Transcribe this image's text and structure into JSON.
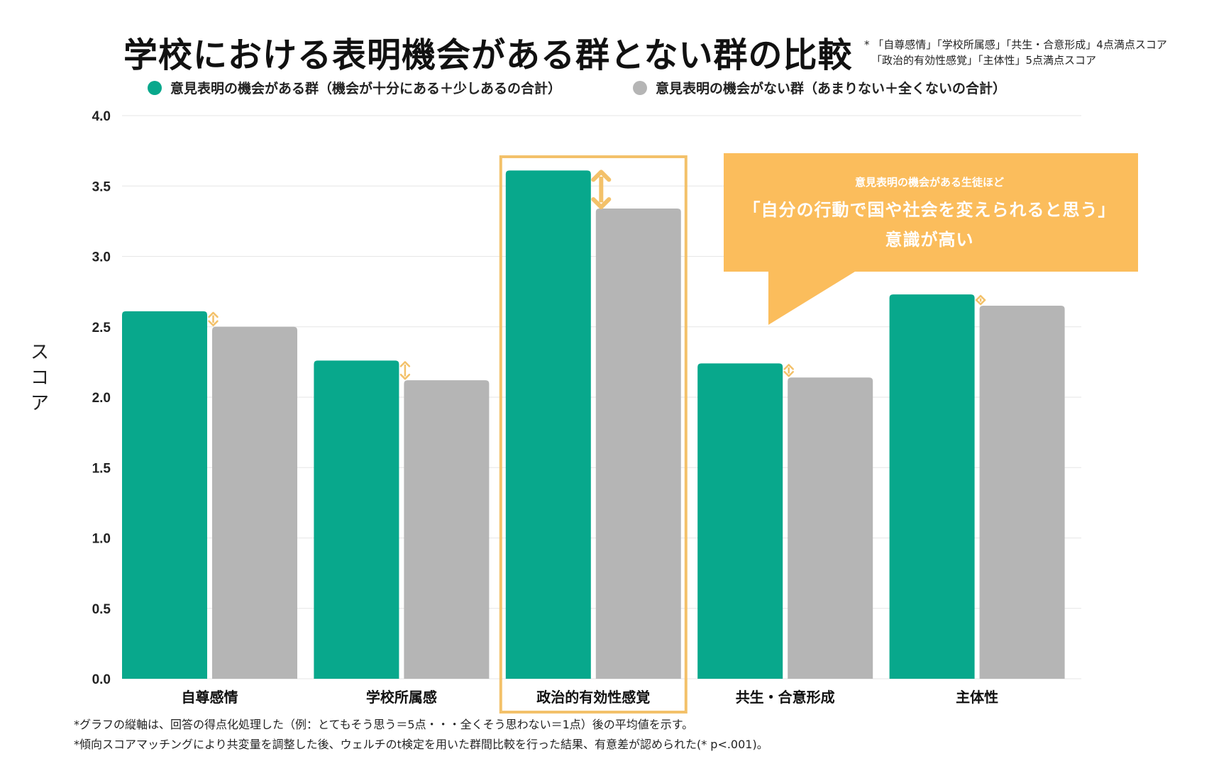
{
  "title": "学校における表明機会がある群とない群の比較",
  "notes": {
    "line1": "* 「自尊感情」「学校所属感」「共生・合意形成」4点満点スコア",
    "line2": "「政治的有効性感覚」「主体性」5点満点スコア"
  },
  "legend": {
    "group1": "意見表明の機会がある群（機会が十分にある＋少しあるの合計）",
    "group2": "意見表明の機会がない群（あまりない＋全くないの合計）"
  },
  "callout": {
    "sub": "意見表明の機会がある生徒ほど",
    "main": "「自分の行動で国や社会を変えられると思う」",
    "main2": "意識が高い"
  },
  "footnotes": {
    "line1": "*グラフの縦軸は、回答の得点化処理した（例：とてもそう思う＝5点・・・全くそう思わない＝1点）後の平均値を示す。",
    "line2": "*傾向スコアマッチングにより共変量を調整した後、ウェルチのt検定を用いた群間比較を行った結果、有意差が認められた(* p<.001)。"
  },
  "colors": {
    "group1": "#08a88c",
    "group2": "#b5b5b5",
    "highlight": "#f3c16a",
    "callout": "#fbbd5c",
    "grid": "#e6e6e6"
  },
  "chart_data": {
    "type": "bar",
    "title": "学校における表明機会がある群とない群の比較",
    "xlabel": "",
    "ylabel": "スコア",
    "ylim": [
      0,
      4.0
    ],
    "yticks": [
      "0.0",
      "0.5",
      "1.0",
      "1.5",
      "2.0",
      "2.5",
      "3.0",
      "3.5",
      "4.0"
    ],
    "categories": [
      "自尊感情",
      "学校所属感",
      "政治的有効性感覚",
      "共生・合意形成",
      "主体性"
    ],
    "series": [
      {
        "name": "意見表明の機会がある群（機会が十分にある＋少しあるの合計）",
        "values": [
          2.61,
          2.26,
          3.61,
          2.24,
          2.73
        ]
      },
      {
        "name": "意見表明の機会がない群（あまりない＋全くないの合計）",
        "values": [
          2.5,
          2.12,
          3.34,
          2.14,
          2.65
        ]
      }
    ],
    "highlighted_category": "政治的有効性感覚",
    "legend_position": "top",
    "grid": true
  }
}
